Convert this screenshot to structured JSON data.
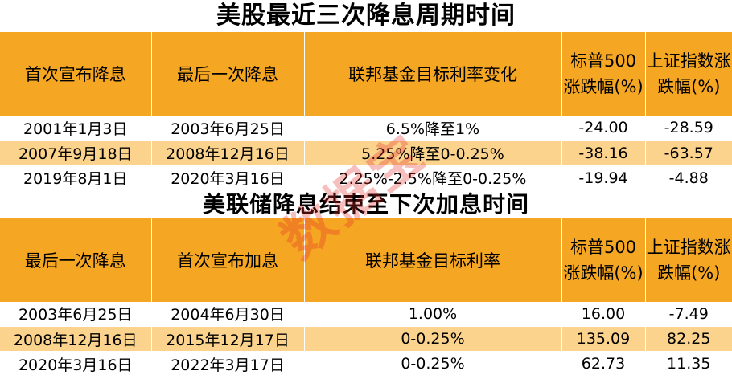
{
  "table1": {
    "title": "美股最近三次降息周期时间",
    "headers": [
      "首次宣布降息",
      "最后一次降息",
      "联邦基金目标利率变化",
      "标普500涨跌幅(%)",
      "上证指数涨跌幅(%)"
    ],
    "rows": [
      [
        "2001年1月3日",
        "2003年6月25日",
        "6.5%降至1%",
        "-24.00",
        "-28.59"
      ],
      [
        "2007年9月18日",
        "2008年12月16日",
        "5.25%降至0-0.25%",
        "-38.16",
        "-63.57"
      ],
      [
        "2019年8月1日",
        "2020年3月16日",
        "2.25%-2.5%降至0-0.25%",
        "-19.94",
        "-4.88"
      ]
    ]
  },
  "table2": {
    "title": "美联储降息结束至下次加息时间",
    "headers": [
      "最后一次降息",
      "首次宣布加息",
      "联邦基金目标利率",
      "标普500涨跌幅(%)",
      "上证指数涨跌幅(%)"
    ],
    "rows": [
      [
        "2003年6月25日",
        "2004年6月30日",
        "1.00%",
        "16.00",
        "-7.49"
      ],
      [
        "2008年12月16日",
        "2015年12月17日",
        "0-0.25%",
        "135.09",
        "82.25"
      ],
      [
        "2020年3月16日",
        "2022年3月17日",
        "0-0.25%",
        "62.73",
        "11.35"
      ]
    ]
  },
  "watermark": "数据宝",
  "colors": {
    "header_bg": "#f5a623",
    "alt_row_bg": "#fbd38d"
  }
}
